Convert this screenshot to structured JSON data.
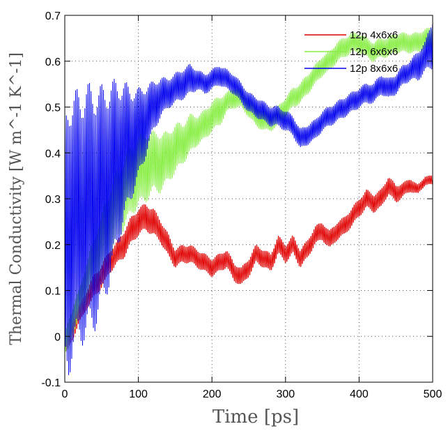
{
  "chart_data": {
    "type": "line",
    "xlabel": "Time [ps]",
    "ylabel": "Thermal Conductivity [W m^-1 K^-1]",
    "xlim": [
      0,
      500
    ],
    "ylim": [
      -0.1,
      0.7
    ],
    "xticks": [
      0,
      100,
      200,
      300,
      400,
      500
    ],
    "yticks": [
      -0.1,
      0,
      0.1,
      0.2,
      0.3,
      0.4,
      0.5,
      0.6,
      0.7
    ],
    "grid": true,
    "legend_position": "top-right",
    "series": [
      {
        "name": "12p 4x6x6",
        "color": "#e00000",
        "x": [
          0,
          5,
          10,
          20,
          30,
          40,
          50,
          60,
          70,
          80,
          90,
          100,
          110,
          120,
          130,
          140,
          150,
          160,
          170,
          180,
          190,
          200,
          210,
          220,
          230,
          240,
          250,
          260,
          270,
          280,
          290,
          300,
          310,
          320,
          330,
          340,
          350,
          360,
          370,
          380,
          390,
          400,
          410,
          420,
          430,
          440,
          450,
          460,
          470,
          480,
          490,
          500
        ],
        "y": [
          -0.02,
          0.0,
          0.02,
          0.05,
          0.08,
          0.11,
          0.13,
          0.16,
          0.18,
          0.2,
          0.23,
          0.25,
          0.26,
          0.25,
          0.23,
          0.2,
          0.17,
          0.18,
          0.18,
          0.17,
          0.16,
          0.15,
          0.16,
          0.17,
          0.14,
          0.13,
          0.15,
          0.18,
          0.17,
          0.16,
          0.2,
          0.18,
          0.2,
          0.17,
          0.19,
          0.22,
          0.23,
          0.21,
          0.23,
          0.24,
          0.26,
          0.28,
          0.3,
          0.29,
          0.3,
          0.33,
          0.31,
          0.32,
          0.33,
          0.32,
          0.34,
          0.34
        ],
        "amplitude": [
          0.02,
          0.03,
          0.03,
          0.02,
          0.02,
          0.025,
          0.025,
          0.025,
          0.025,
          0.03,
          0.03,
          0.03,
          0.03,
          0.03,
          0.025,
          0.025,
          0.02,
          0.02,
          0.02,
          0.02,
          0.02,
          0.02,
          0.02,
          0.02,
          0.02,
          0.02,
          0.02,
          0.02,
          0.02,
          0.02,
          0.02,
          0.02,
          0.02,
          0.02,
          0.02,
          0.02,
          0.02,
          0.02,
          0.02,
          0.02,
          0.02,
          0.02,
          0.02,
          0.02,
          0.02,
          0.02,
          0.02,
          0.015,
          0.015,
          0.01,
          0.01,
          0.01
        ]
      },
      {
        "name": "12p 6x6x6",
        "color": "#88ee44",
        "x": [
          0,
          5,
          10,
          20,
          30,
          40,
          50,
          60,
          70,
          80,
          90,
          100,
          110,
          120,
          130,
          140,
          150,
          160,
          170,
          180,
          190,
          200,
          210,
          220,
          230,
          240,
          250,
          260,
          270,
          280,
          290,
          300,
          310,
          320,
          330,
          340,
          350,
          360,
          370,
          380,
          390,
          400,
          410,
          420,
          430,
          440,
          450,
          460,
          470,
          480,
          490,
          500
        ],
        "y": [
          -0.02,
          0.0,
          0.03,
          0.07,
          0.12,
          0.16,
          0.2,
          0.24,
          0.28,
          0.31,
          0.34,
          0.36,
          0.37,
          0.38,
          0.38,
          0.39,
          0.41,
          0.42,
          0.44,
          0.45,
          0.46,
          0.48,
          0.49,
          0.51,
          0.52,
          0.52,
          0.5,
          0.48,
          0.47,
          0.47,
          0.48,
          0.5,
          0.52,
          0.53,
          0.55,
          0.57,
          0.59,
          0.6,
          0.62,
          0.63,
          0.64,
          0.64,
          0.63,
          0.62,
          0.63,
          0.63,
          0.64,
          0.64,
          0.64,
          0.64,
          0.65,
          0.65
        ],
        "amplitude": [
          0.02,
          0.03,
          0.03,
          0.03,
          0.04,
          0.05,
          0.06,
          0.07,
          0.07,
          0.07,
          0.07,
          0.07,
          0.07,
          0.06,
          0.06,
          0.05,
          0.05,
          0.04,
          0.04,
          0.03,
          0.03,
          0.03,
          0.03,
          0.02,
          0.02,
          0.02,
          0.02,
          0.02,
          0.02,
          0.02,
          0.02,
          0.02,
          0.02,
          0.02,
          0.02,
          0.02,
          0.02,
          0.02,
          0.02,
          0.02,
          0.02,
          0.02,
          0.02,
          0.02,
          0.02,
          0.02,
          0.02,
          0.02,
          0.02,
          0.02,
          0.02,
          0.02
        ]
      },
      {
        "name": "12p 8x6x6",
        "color": "#0000ee",
        "x": [
          0,
          5,
          10,
          20,
          30,
          40,
          50,
          60,
          70,
          80,
          90,
          100,
          110,
          120,
          130,
          140,
          150,
          160,
          170,
          180,
          190,
          200,
          210,
          220,
          230,
          240,
          250,
          260,
          270,
          280,
          290,
          300,
          310,
          320,
          330,
          340,
          350,
          360,
          370,
          380,
          390,
          400,
          410,
          420,
          430,
          440,
          450,
          460,
          470,
          480,
          490,
          500
        ],
        "y": [
          0.2,
          0.22,
          0.24,
          0.26,
          0.27,
          0.28,
          0.3,
          0.33,
          0.37,
          0.4,
          0.42,
          0.44,
          0.47,
          0.5,
          0.52,
          0.53,
          0.54,
          0.55,
          0.56,
          0.56,
          0.55,
          0.56,
          0.57,
          0.56,
          0.55,
          0.53,
          0.51,
          0.5,
          0.49,
          0.48,
          0.48,
          0.47,
          0.46,
          0.43,
          0.44,
          0.45,
          0.47,
          0.48,
          0.49,
          0.5,
          0.51,
          0.52,
          0.53,
          0.53,
          0.55,
          0.54,
          0.55,
          0.57,
          0.58,
          0.59,
          0.61,
          0.64
        ],
        "amplitude": [
          0.25,
          0.28,
          0.26,
          0.25,
          0.25,
          0.24,
          0.22,
          0.2,
          0.17,
          0.14,
          0.11,
          0.09,
          0.07,
          0.05,
          0.04,
          0.03,
          0.03,
          0.03,
          0.03,
          0.02,
          0.02,
          0.02,
          0.02,
          0.02,
          0.02,
          0.02,
          0.02,
          0.02,
          0.02,
          0.02,
          0.02,
          0.02,
          0.02,
          0.02,
          0.02,
          0.02,
          0.02,
          0.02,
          0.02,
          0.02,
          0.02,
          0.02,
          0.02,
          0.02,
          0.02,
          0.02,
          0.02,
          0.02,
          0.02,
          0.03,
          0.03,
          0.05
        ]
      }
    ]
  }
}
